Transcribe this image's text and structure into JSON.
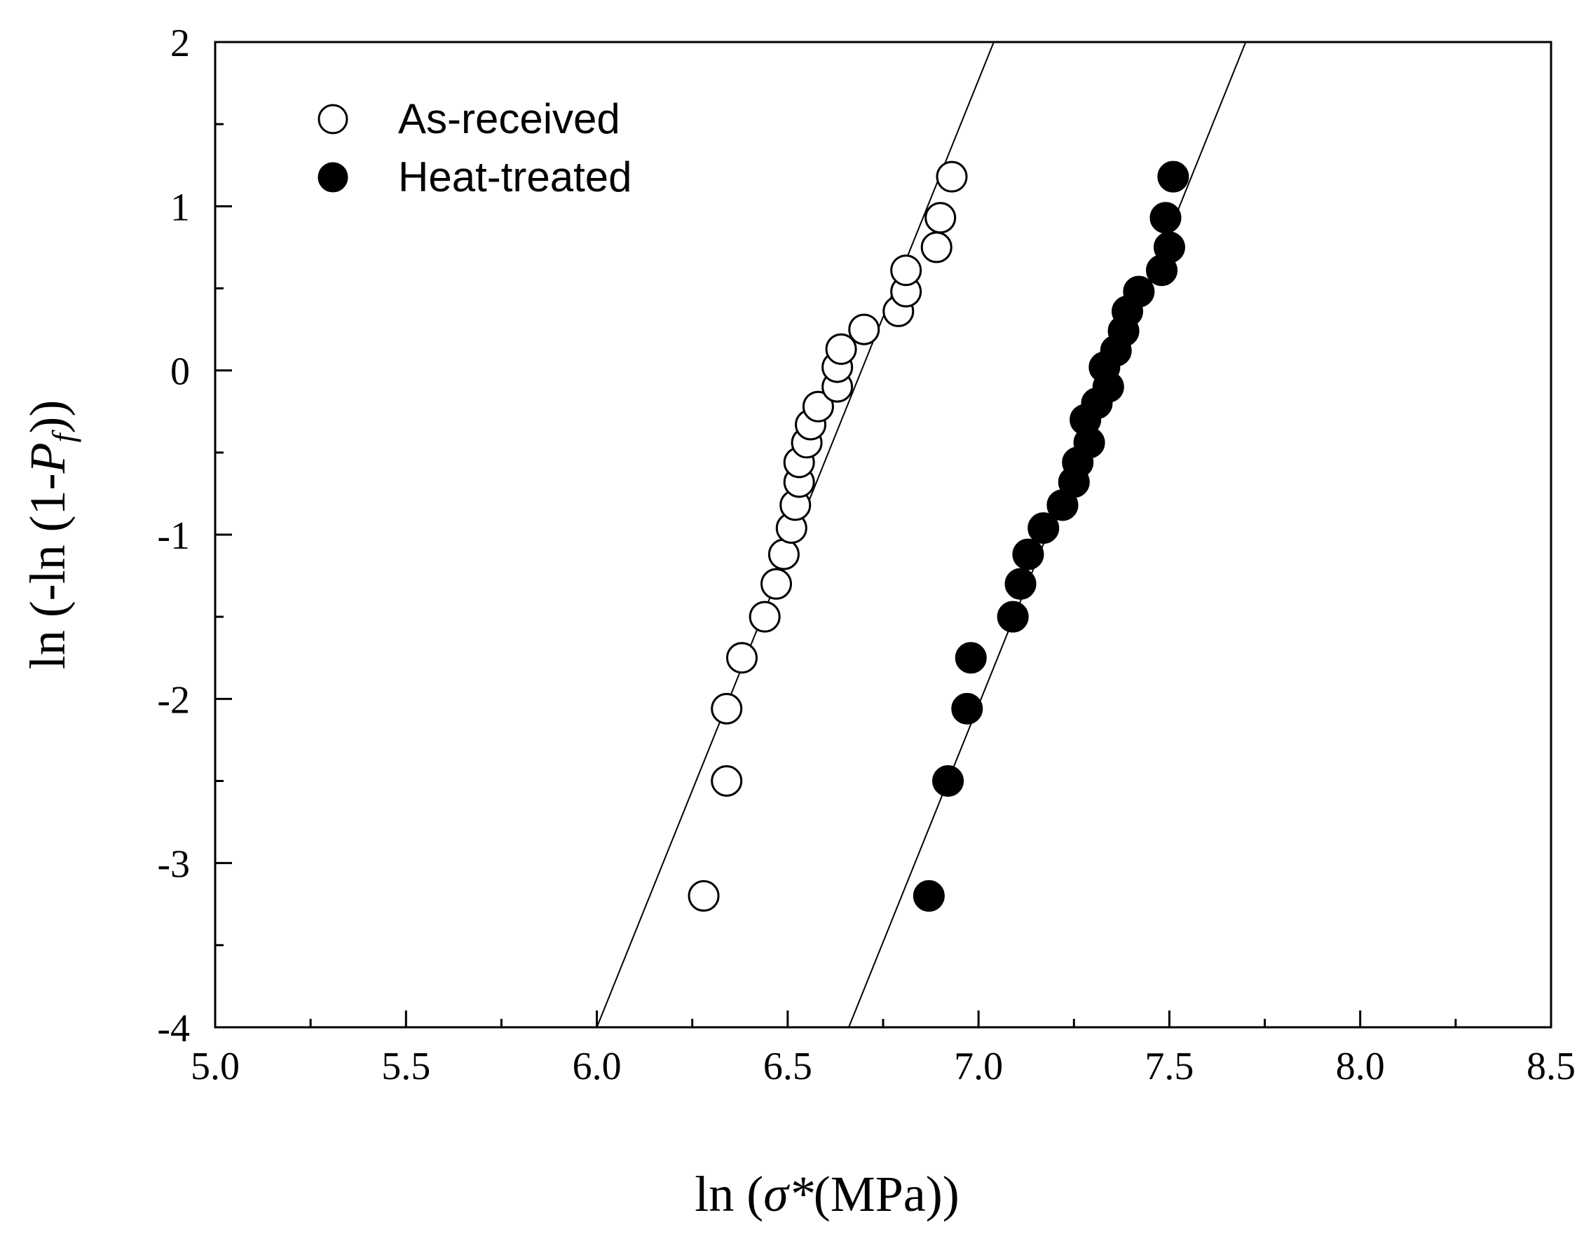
{
  "chart_data": {
    "type": "scatter",
    "title": "",
    "xlabel": {
      "pre": "ln (",
      "sym": "σ*",
      "post": "(MPa))"
    },
    "ylabel": {
      "pre": "ln (-ln (1-",
      "sym": "P",
      "sub": "f",
      "post": "))"
    },
    "xlim": [
      5.0,
      8.5
    ],
    "ylim": [
      -4,
      2
    ],
    "xticks": [
      "5.0",
      "5.5",
      "6.0",
      "6.5",
      "7.0",
      "7.5",
      "8.0",
      "8.5"
    ],
    "xtick_values": [
      5.0,
      5.5,
      6.0,
      6.5,
      7.0,
      7.5,
      8.0,
      8.5
    ],
    "yticks": [
      "-4",
      "-3",
      "-2",
      "-1",
      "0",
      "1",
      "2"
    ],
    "ytick_values": [
      -4,
      -3,
      -2,
      -1,
      0,
      1,
      2
    ],
    "x_minor_step": 0.25,
    "y_minor_step": 0.5,
    "grid": false,
    "legend_position": "top-left",
    "series": [
      {
        "name": "As-received",
        "marker": "open-circle",
        "color": "#000000",
        "points": [
          [
            6.28,
            -3.2
          ],
          [
            6.34,
            -2.5
          ],
          [
            6.34,
            -2.06
          ],
          [
            6.38,
            -1.75
          ],
          [
            6.44,
            -1.5
          ],
          [
            6.47,
            -1.3
          ],
          [
            6.49,
            -1.12
          ],
          [
            6.51,
            -0.96
          ],
          [
            6.52,
            -0.82
          ],
          [
            6.53,
            -0.68
          ],
          [
            6.53,
            -0.56
          ],
          [
            6.55,
            -0.44
          ],
          [
            6.56,
            -0.33
          ],
          [
            6.58,
            -0.22
          ],
          [
            6.63,
            -0.1
          ],
          [
            6.63,
            0.02
          ],
          [
            6.64,
            0.13
          ],
          [
            6.7,
            0.25
          ],
          [
            6.79,
            0.36
          ],
          [
            6.81,
            0.48
          ],
          [
            6.81,
            0.61
          ],
          [
            6.89,
            0.75
          ],
          [
            6.9,
            0.93
          ],
          [
            6.93,
            1.18
          ]
        ],
        "fit": [
          [
            6.0,
            -4
          ],
          [
            7.04,
            2
          ]
        ]
      },
      {
        "name": "Heat-treated",
        "marker": "filled-circle",
        "color": "#000000",
        "points": [
          [
            6.87,
            -3.2
          ],
          [
            6.92,
            -2.5
          ],
          [
            6.97,
            -2.06
          ],
          [
            6.98,
            -1.75
          ],
          [
            7.09,
            -1.5
          ],
          [
            7.11,
            -1.3
          ],
          [
            7.13,
            -1.12
          ],
          [
            7.17,
            -0.96
          ],
          [
            7.22,
            -0.82
          ],
          [
            7.25,
            -0.68
          ],
          [
            7.26,
            -0.56
          ],
          [
            7.29,
            -0.44
          ],
          [
            7.28,
            -0.3
          ],
          [
            7.31,
            -0.2
          ],
          [
            7.34,
            -0.1
          ],
          [
            7.33,
            0.02
          ],
          [
            7.36,
            0.12
          ],
          [
            7.38,
            0.24
          ],
          [
            7.39,
            0.36
          ],
          [
            7.42,
            0.48
          ],
          [
            7.48,
            0.61
          ],
          [
            7.5,
            0.75
          ],
          [
            7.49,
            0.93
          ],
          [
            7.51,
            1.18
          ]
        ],
        "fit": [
          [
            6.66,
            -4
          ],
          [
            7.7,
            2
          ]
        ]
      }
    ]
  }
}
